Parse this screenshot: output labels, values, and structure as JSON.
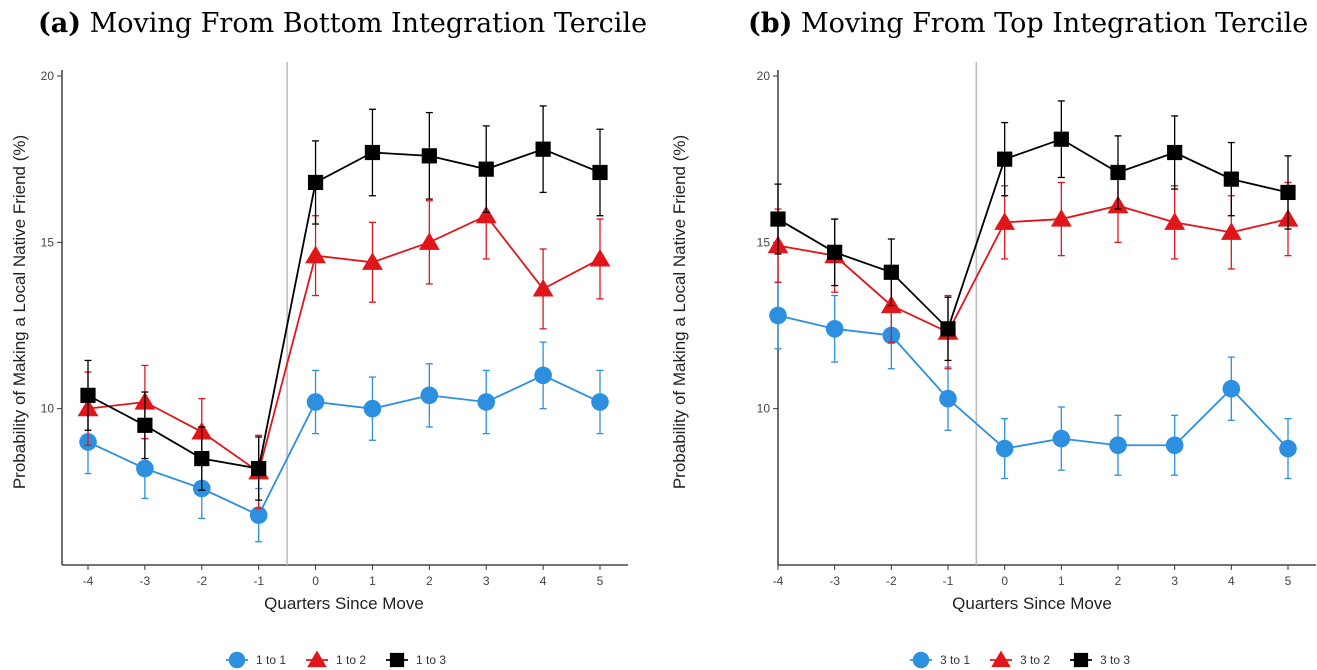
{
  "chart_data": [
    {
      "type": "line",
      "panel_letter": "(a)",
      "title": "Moving From Bottom Integration Tercile",
      "xlabel": "Quarters Since Move",
      "ylabel": "Probability of Making a Local Native Friend (%)",
      "x": [
        -4,
        -3,
        -2,
        -1,
        0,
        1,
        2,
        3,
        4,
        5
      ],
      "xticks": [
        "-4",
        "-3",
        "-2",
        "-1",
        "0",
        "1",
        "2",
        "3",
        "4",
        "5"
      ],
      "yticks": [
        "10",
        "15",
        "20"
      ],
      "ylim": [
        5,
        20
      ],
      "vline_x": -0.5,
      "grid": false,
      "legend_position": "bottom",
      "series": [
        {
          "name": "1 to 1",
          "color": "#2d8fe0",
          "marker": "circle",
          "values": [
            9.0,
            8.2,
            7.6,
            6.8,
            10.2,
            10.0,
            10.4,
            10.2,
            11.0,
            10.2
          ],
          "err": [
            0.95,
            0.9,
            0.9,
            0.8,
            0.95,
            0.95,
            0.95,
            0.95,
            1.0,
            0.95
          ]
        },
        {
          "name": "1 to 2",
          "color": "#e0161b",
          "marker": "triangle",
          "values": [
            10.0,
            10.2,
            9.3,
            8.1,
            14.6,
            14.4,
            15.0,
            15.8,
            13.6,
            14.5
          ],
          "err": [
            1.1,
            1.1,
            1.0,
            1.1,
            1.2,
            1.2,
            1.25,
            1.3,
            1.2,
            1.2
          ]
        },
        {
          "name": "1 to 3",
          "color": "#000000",
          "marker": "square",
          "values": [
            10.4,
            9.5,
            8.5,
            8.2,
            16.8,
            17.7,
            17.6,
            17.2,
            17.8,
            17.1
          ],
          "err": [
            1.05,
            1.0,
            0.95,
            0.95,
            1.25,
            1.3,
            1.3,
            1.3,
            1.3,
            1.3
          ]
        }
      ]
    },
    {
      "type": "line",
      "panel_letter": "(b)",
      "title": "Moving From Top Integration Tercile",
      "xlabel": "Quarters Since Move",
      "ylabel": "Probability of Making a Local Native Friend (%)",
      "x": [
        -4,
        -3,
        -2,
        -1,
        0,
        1,
        2,
        3,
        4,
        5
      ],
      "xticks": [
        "-4",
        "-3",
        "-2",
        "-1",
        "0",
        "1",
        "2",
        "3",
        "4",
        "5"
      ],
      "yticks": [
        "10",
        "15",
        "20"
      ],
      "ylim": [
        5,
        20
      ],
      "vline_x": -0.5,
      "grid": false,
      "legend_position": "bottom",
      "series": [
        {
          "name": "3 to 1",
          "color": "#2d8fe0",
          "marker": "circle",
          "values": [
            12.8,
            12.4,
            12.2,
            10.3,
            8.8,
            9.1,
            8.9,
            8.9,
            10.6,
            8.8
          ],
          "err": [
            1.0,
            1.0,
            1.0,
            0.95,
            0.9,
            0.95,
            0.9,
            0.9,
            0.95,
            0.9
          ]
        },
        {
          "name": "3 to 2",
          "color": "#e0161b",
          "marker": "triangle",
          "values": [
            14.9,
            14.6,
            13.1,
            12.3,
            15.6,
            15.7,
            16.1,
            15.6,
            15.3,
            15.7
          ],
          "err": [
            1.1,
            1.1,
            1.1,
            1.1,
            1.1,
            1.1,
            1.1,
            1.1,
            1.1,
            1.1
          ]
        },
        {
          "name": "3 to 3",
          "color": "#000000",
          "marker": "square",
          "values": [
            15.7,
            14.7,
            14.1,
            12.4,
            17.5,
            18.1,
            17.1,
            17.7,
            16.9,
            16.5
          ],
          "err": [
            1.05,
            1.0,
            1.0,
            0.95,
            1.1,
            1.15,
            1.1,
            1.1,
            1.1,
            1.1
          ]
        }
      ]
    }
  ]
}
